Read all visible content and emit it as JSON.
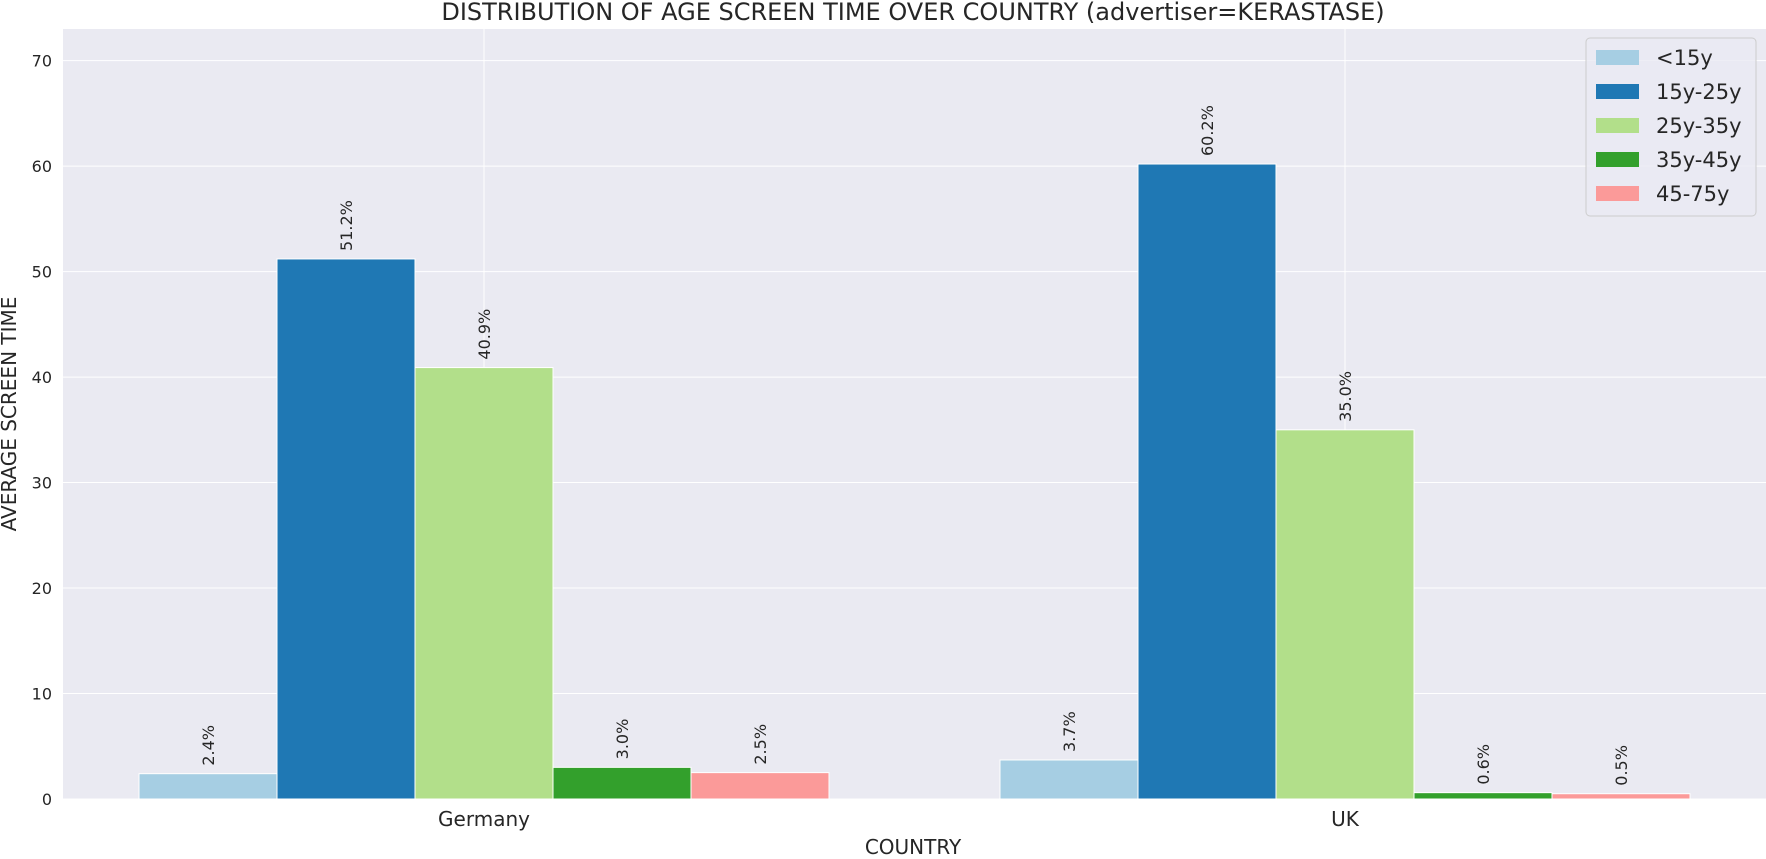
{
  "chart_data": {
    "type": "bar",
    "title": "DISTRIBUTION OF AGE SCREEN TIME OVER COUNTRY (advertiser=KERASTASE)",
    "xlabel": "COUNTRY",
    "ylabel": "AVERAGE SCREEN TIME",
    "categories": [
      "Germany",
      "UK"
    ],
    "series": [
      {
        "name": "<15y",
        "color": "#a6cee3",
        "values": [
          2.4,
          3.7
        ],
        "labels": [
          "2.4%",
          "3.7%"
        ]
      },
      {
        "name": "15y-25y",
        "color": "#1f78b4",
        "values": [
          51.2,
          60.2
        ],
        "labels": [
          "51.2%",
          "60.2%"
        ]
      },
      {
        "name": "25y-35y",
        "color": "#b2df8a",
        "values": [
          40.9,
          35.0
        ],
        "labels": [
          "40.9%",
          "35.0%"
        ]
      },
      {
        "name": "35y-45y",
        "color": "#33a02c",
        "values": [
          3.0,
          0.6
        ],
        "labels": [
          "3.0%",
          "0.6%"
        ]
      },
      {
        "name": "45-75y",
        "color": "#fb9a99",
        "values": [
          2.5,
          0.5
        ],
        "labels": [
          "2.5%",
          "0.5%"
        ]
      }
    ],
    "ylim": [
      0,
      73
    ],
    "yticks": [
      0,
      10,
      20,
      30,
      40,
      50,
      60,
      70
    ],
    "grid": true,
    "legend_position": "top-right"
  }
}
